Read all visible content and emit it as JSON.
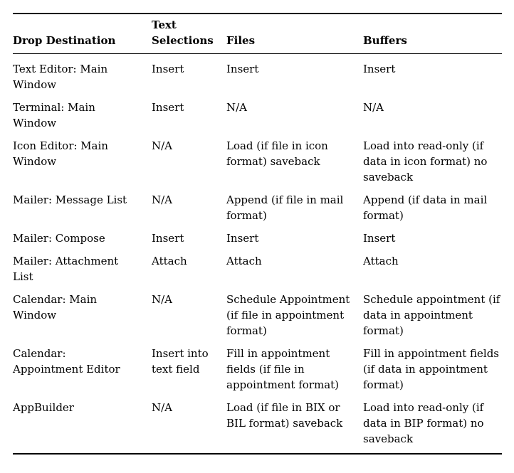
{
  "page": {
    "background_color": "#ffffff",
    "text_color": "#000000"
  },
  "table": {
    "columns": [
      "Drop Destination",
      "Text Selections",
      "Files",
      "Buffers"
    ],
    "rows": [
      [
        "Text Editor: Main Window",
        "Insert",
        "Insert",
        "Insert"
      ],
      [
        "Terminal: Main Window",
        "Insert",
        "N/A",
        "N/A"
      ],
      [
        "Icon Editor: Main Window",
        "N/A",
        "Load (if file in icon format) saveback",
        "Load into read-only (if data in icon format) no saveback"
      ],
      [
        "Mailer: Message List",
        "N/A",
        "Append (if file in mail format)",
        "Append (if data in mail format)"
      ],
      [
        "Mailer: Compose",
        "Insert",
        "Insert",
        "Insert"
      ],
      [
        "Mailer: Attachment List",
        "Attach",
        "Attach",
        "Attach"
      ],
      [
        "Calendar: Main Window",
        "N/A",
        "Schedule Appointment (if file in appointment format)",
        "Schedule appointment (if data in appointment format)"
      ],
      [
        "Calendar: Appointment Editor",
        "Insert into text field",
        "Fill in appointment fields (if file in appointment format)",
        "Fill in appointment fields (if data in appointment format)"
      ],
      [
        "AppBuilder",
        "N/A",
        "Load (if file in BIX or BIL format) saveback",
        "Load into read-only (if data in BIP format) no saveback"
      ]
    ]
  }
}
